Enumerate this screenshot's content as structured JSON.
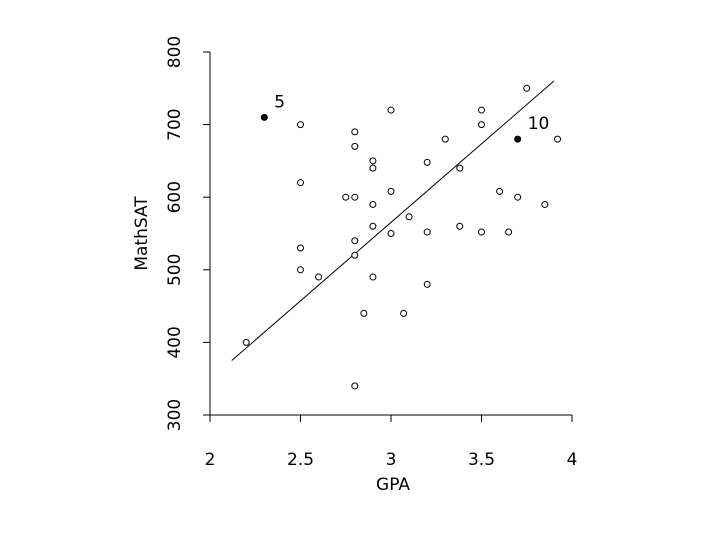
{
  "chart_data": {
    "type": "scatter",
    "title": "",
    "xlabel": "GPA",
    "ylabel": "MathSAT",
    "xlim": [
      2,
      4
    ],
    "ylim": [
      300,
      800
    ],
    "x_ticks": [
      "2",
      "2.5",
      "3",
      "3.5",
      "4"
    ],
    "y_ticks": [
      "300",
      "400",
      "500",
      "600",
      "700",
      "800"
    ],
    "grid": false,
    "points": [
      {
        "x": 2.2,
        "y": 400
      },
      {
        "x": 2.5,
        "y": 700
      },
      {
        "x": 2.5,
        "y": 620
      },
      {
        "x": 2.5,
        "y": 530
      },
      {
        "x": 2.5,
        "y": 500
      },
      {
        "x": 2.6,
        "y": 490
      },
      {
        "x": 2.75,
        "y": 600
      },
      {
        "x": 2.8,
        "y": 690
      },
      {
        "x": 2.8,
        "y": 670
      },
      {
        "x": 2.8,
        "y": 600
      },
      {
        "x": 2.8,
        "y": 540
      },
      {
        "x": 2.8,
        "y": 520
      },
      {
        "x": 2.8,
        "y": 340
      },
      {
        "x": 2.85,
        "y": 440
      },
      {
        "x": 2.9,
        "y": 650
      },
      {
        "x": 2.9,
        "y": 640
      },
      {
        "x": 2.9,
        "y": 590
      },
      {
        "x": 2.9,
        "y": 560
      },
      {
        "x": 2.9,
        "y": 490
      },
      {
        "x": 3.0,
        "y": 720
      },
      {
        "x": 3.0,
        "y": 608
      },
      {
        "x": 3.0,
        "y": 550
      },
      {
        "x": 3.07,
        "y": 440
      },
      {
        "x": 3.1,
        "y": 573
      },
      {
        "x": 3.2,
        "y": 648
      },
      {
        "x": 3.2,
        "y": 552
      },
      {
        "x": 3.2,
        "y": 480
      },
      {
        "x": 3.3,
        "y": 680
      },
      {
        "x": 3.38,
        "y": 640
      },
      {
        "x": 3.38,
        "y": 560
      },
      {
        "x": 3.5,
        "y": 720
      },
      {
        "x": 3.5,
        "y": 700
      },
      {
        "x": 3.5,
        "y": 552
      },
      {
        "x": 3.6,
        "y": 608
      },
      {
        "x": 3.65,
        "y": 552
      },
      {
        "x": 3.7,
        "y": 600
      },
      {
        "x": 3.75,
        "y": 750
      },
      {
        "x": 3.85,
        "y": 590
      },
      {
        "x": 3.92,
        "y": 680
      }
    ],
    "highlighted_points": [
      {
        "x": 2.3,
        "y": 710,
        "label": "5"
      },
      {
        "x": 3.7,
        "y": 680,
        "label": "10"
      }
    ],
    "fit_line": {
      "x1": 2.12,
      "y1": 375,
      "x2": 3.9,
      "y2": 760
    }
  }
}
